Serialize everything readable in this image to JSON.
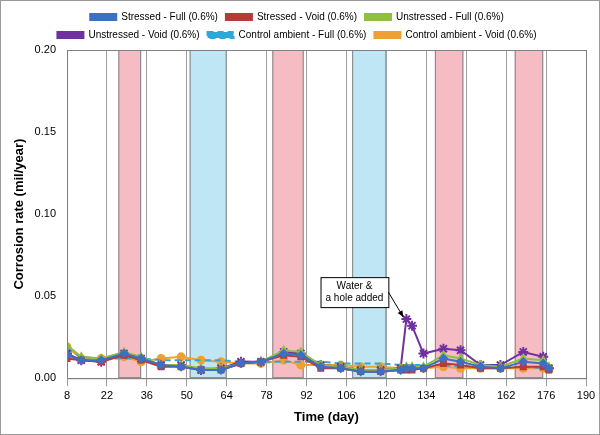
{
  "chart_data": {
    "type": "line",
    "x_label": "Time (day)",
    "y_label": "Corrosion rate (mil/year)",
    "x": [
      8,
      13,
      20,
      28,
      34,
      41,
      48,
      55,
      62,
      69,
      76,
      84,
      90,
      97,
      104,
      111,
      118,
      125,
      127,
      129,
      133,
      140,
      146,
      153,
      160,
      168,
      175,
      177
    ],
    "series": [
      {
        "name": "Stressed - Full (0.6%)",
        "color": "#3d6fc2",
        "marker": "diamond",
        "line_style": "solid",
        "values": [
          0.014,
          0.011,
          0.011,
          0.015,
          0.012,
          0.008,
          0.007,
          0.005,
          0.005,
          0.009,
          0.01,
          0.015,
          0.014,
          0.007,
          0.006,
          0.004,
          0.004,
          0.005,
          0.006,
          0.006,
          0.006,
          0.012,
          0.01,
          0.007,
          0.006,
          0.01,
          0.009,
          0.006
        ]
      },
      {
        "name": "Stressed - Void (0.6%)",
        "color": "#b83a36",
        "marker": "square",
        "line_style": "solid",
        "values": [
          0.012,
          0.011,
          0.01,
          0.014,
          0.011,
          0.007,
          0.007,
          0.005,
          0.005,
          0.009,
          0.01,
          0.014,
          0.013,
          0.006,
          0.006,
          0.004,
          0.004,
          0.005,
          0.005,
          0.005,
          0.006,
          0.009,
          0.008,
          0.006,
          0.006,
          0.007,
          0.007,
          0.005
        ]
      },
      {
        "name": "Unstressed - Full (0.6%)",
        "color": "#8fbf3f",
        "marker": "triangle",
        "line_style": "solid",
        "values": [
          0.02,
          0.013,
          0.012,
          0.016,
          0.013,
          0.008,
          0.008,
          0.006,
          0.006,
          0.009,
          0.01,
          0.017,
          0.016,
          0.008,
          0.007,
          0.005,
          0.005,
          0.006,
          0.007,
          0.007,
          0.007,
          0.014,
          0.012,
          0.008,
          0.007,
          0.012,
          0.011,
          0.007
        ]
      },
      {
        "name": "Unstressed - Void (0.6%)",
        "color": "#7030a0",
        "marker": "star",
        "line_style": "solid",
        "values": [
          0.015,
          0.011,
          0.01,
          0.015,
          0.012,
          0.008,
          0.008,
          0.005,
          0.006,
          0.01,
          0.01,
          0.016,
          0.015,
          0.008,
          0.007,
          0.005,
          0.005,
          0.006,
          0.036,
          0.032,
          0.015,
          0.018,
          0.017,
          0.008,
          0.008,
          0.016,
          0.013,
          0.006
        ]
      },
      {
        "name": "Control ambient - Full (0.6%)",
        "color": "#2fa8d8",
        "marker": "none",
        "line_style": "dashed",
        "values": [
          0.018,
          0.013,
          0.012,
          0.012,
          0.012,
          0.011,
          0.011,
          0.011,
          0.011,
          0.01,
          0.01,
          0.01,
          0.01,
          0.01,
          0.009,
          0.009,
          0.009,
          0.008,
          0.008,
          0.008,
          0.008,
          0.008,
          0.007,
          0.007,
          0.007,
          0.007,
          0.006,
          0.006
        ]
      },
      {
        "name": "Control ambient - Void (0.6%)",
        "color": "#f0a030",
        "marker": "circle",
        "line_style": "solid",
        "values": [
          0.019,
          0.012,
          0.012,
          0.013,
          0.01,
          0.012,
          0.013,
          0.011,
          0.01,
          0.009,
          0.009,
          0.011,
          0.008,
          0.008,
          0.008,
          0.007,
          0.007,
          0.006,
          0.006,
          0.006,
          0.006,
          0.007,
          0.006,
          0.006,
          0.006,
          0.006,
          0.006,
          0.006
        ]
      }
    ],
    "xlim": [
      8,
      190
    ],
    "xticks": [
      8,
      22,
      36,
      50,
      64,
      78,
      92,
      106,
      120,
      134,
      148,
      162,
      176,
      190
    ],
    "ylim": [
      0,
      0.2
    ],
    "yticks": [
      {
        "value": 0,
        "label": "0.00"
      },
      {
        "value": 0.05,
        "label": "0.05"
      },
      {
        "value": 0.1,
        "label": "0.10"
      },
      {
        "value": 0.15,
        "label": "0.15"
      },
      {
        "value": 0.2,
        "label": "0.20"
      }
    ],
    "grid": "x",
    "legend": "top",
    "bands": [
      {
        "start": 26,
        "end": 34,
        "color": "#f6bcc4"
      },
      {
        "start": 51,
        "end": 64,
        "color": "#bfe6f5"
      },
      {
        "start": 80,
        "end": 91,
        "color": "#f6bcc4"
      },
      {
        "start": 108,
        "end": 120,
        "color": "#bfe6f5"
      },
      {
        "start": 137,
        "end": 147,
        "color": "#f6bcc4"
      },
      {
        "start": 165,
        "end": 175,
        "color": "#f6bcc4"
      }
    ],
    "annotations": [
      {
        "text": "Water &\na hole added",
        "x": 127,
        "y": 0.036
      }
    ]
  }
}
